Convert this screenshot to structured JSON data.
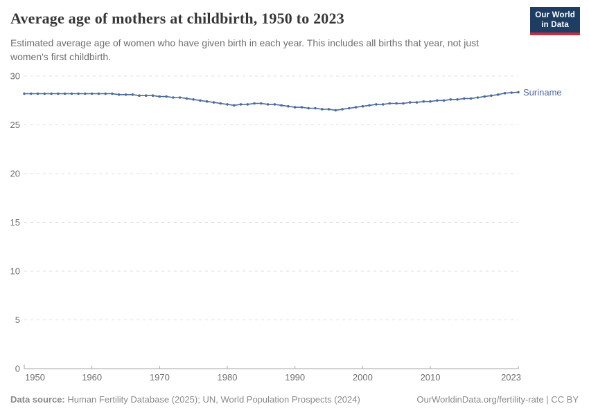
{
  "header": {
    "title": "Average age of mothers at childbirth, 1950 to 2023",
    "subtitle": "Estimated average age of women who have given birth in each year. This includes all births that year, not just women's first childbirth.",
    "logo": {
      "line1": "Our World",
      "line2": "in Data"
    }
  },
  "chart_data": {
    "type": "line",
    "title": "Average age of mothers at childbirth, 1950 to 2023",
    "xlabel": "",
    "ylabel": "",
    "xlim": [
      1950,
      2023
    ],
    "ylim": [
      0,
      30
    ],
    "xticks": [
      1950,
      1960,
      1970,
      1980,
      1990,
      2000,
      2010,
      2023
    ],
    "yticks": [
      0,
      5,
      10,
      15,
      20,
      25,
      30
    ],
    "grid": "horizontal-dashed",
    "legend_position": "end-of-line-label",
    "x": [
      1950,
      1951,
      1952,
      1953,
      1954,
      1955,
      1956,
      1957,
      1958,
      1959,
      1960,
      1961,
      1962,
      1963,
      1964,
      1965,
      1966,
      1967,
      1968,
      1969,
      1970,
      1971,
      1972,
      1973,
      1974,
      1975,
      1976,
      1977,
      1978,
      1979,
      1980,
      1981,
      1982,
      1983,
      1984,
      1985,
      1986,
      1987,
      1988,
      1989,
      1990,
      1991,
      1992,
      1993,
      1994,
      1995,
      1996,
      1997,
      1998,
      1999,
      2000,
      2001,
      2002,
      2003,
      2004,
      2005,
      2006,
      2007,
      2008,
      2009,
      2010,
      2011,
      2012,
      2013,
      2014,
      2015,
      2016,
      2017,
      2018,
      2019,
      2020,
      2021,
      2022,
      2023
    ],
    "series": [
      {
        "name": "Suriname",
        "color": "#4C6A9C",
        "values": [
          28.2,
          28.2,
          28.2,
          28.2,
          28.2,
          28.2,
          28.2,
          28.2,
          28.2,
          28.2,
          28.2,
          28.2,
          28.2,
          28.2,
          28.1,
          28.1,
          28.1,
          28.0,
          28.0,
          28.0,
          27.9,
          27.9,
          27.8,
          27.8,
          27.7,
          27.6,
          27.5,
          27.4,
          27.3,
          27.2,
          27.1,
          27.0,
          27.1,
          27.1,
          27.2,
          27.2,
          27.1,
          27.1,
          27.0,
          26.9,
          26.8,
          26.8,
          26.7,
          26.7,
          26.6,
          26.6,
          26.5,
          26.6,
          26.7,
          26.8,
          26.9,
          27.0,
          27.1,
          27.1,
          27.2,
          27.2,
          27.2,
          27.3,
          27.3,
          27.4,
          27.4,
          27.5,
          27.5,
          27.6,
          27.6,
          27.7,
          27.7,
          27.8,
          27.9,
          28.0,
          28.1,
          28.25,
          28.3,
          28.35
        ]
      }
    ]
  },
  "footer": {
    "data_source_label": "Data source:",
    "data_source_text": "Human Fertility Database (2025); UN, World Population Prospects (2024)",
    "license_text": "OurWorldinData.org/fertility-rate | CC BY"
  },
  "colors": {
    "line": "#4C6A9C",
    "entity_label": "#4C6A9C",
    "gridline": "#dcdcdc",
    "axis": "#a5a5a5",
    "tick_text": "#6e6e6e",
    "title_text": "#373737",
    "subtitle_text": "#6e6e6e",
    "footer_text": "#8a8a8a",
    "logo_background": "#1d3d63",
    "logo_accent": "#cb2b3f"
  }
}
